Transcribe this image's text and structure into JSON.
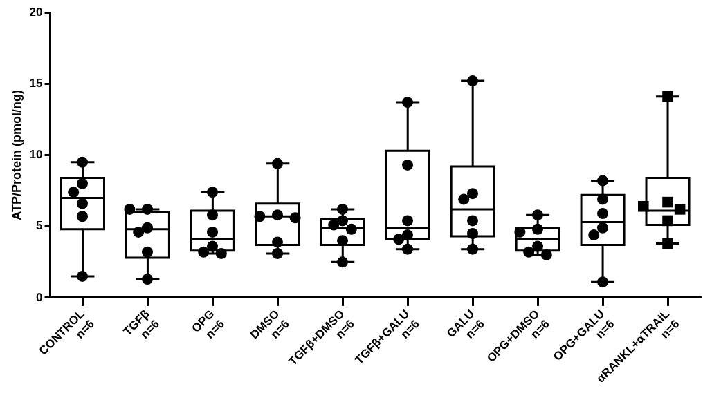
{
  "chart_data": {
    "type": "box",
    "ylabel": "ATP/Protein (pmol/ng)",
    "color": "#000000",
    "categories": [
      "CONTROL\nn=6",
      "TGFβ\nn=6",
      "OPG\nn=6",
      "DMSO\nn=6",
      "TGFβ+DMSO\nn=6",
      "TGFβ+GALU\nn=6",
      "GALU\nn=6",
      "OPG+DMSO\nn=6",
      "OPG+GALU\nn=6",
      "αRANKL+αTRAIL\nn=6"
    ],
    "ylim": [
      0,
      20
    ],
    "yticks": [
      0,
      5,
      10,
      15,
      20
    ],
    "boxes": [
      {
        "low": 1.5,
        "q1": 4.8,
        "median": 7.0,
        "q3": 8.4,
        "high": 9.5
      },
      {
        "low": 1.3,
        "q1": 2.8,
        "median": 4.8,
        "q3": 6.0,
        "high": 6.2
      },
      {
        "low": 3.1,
        "q1": 3.3,
        "median": 4.1,
        "q3": 6.1,
        "high": 7.4
      },
      {
        "low": 3.1,
        "q1": 3.7,
        "median": 5.7,
        "q3": 6.6,
        "high": 9.4
      },
      {
        "low": 2.5,
        "q1": 3.7,
        "median": 4.9,
        "q3": 5.5,
        "high": 6.2
      },
      {
        "low": 3.4,
        "q1": 4.1,
        "median": 4.9,
        "q3": 10.3,
        "high": 13.7
      },
      {
        "low": 3.4,
        "q1": 4.3,
        "median": 6.2,
        "q3": 9.2,
        "high": 15.2
      },
      {
        "low": 3.0,
        "q1": 3.3,
        "median": 4.1,
        "q3": 4.9,
        "high": 5.8
      },
      {
        "low": 1.1,
        "q1": 3.7,
        "median": 5.3,
        "q3": 7.2,
        "high": 8.2
      },
      {
        "low": 3.8,
        "q1": 5.1,
        "median": 6.1,
        "q3": 8.4,
        "high": 14.1
      }
    ],
    "series": [
      {
        "type": "scatter",
        "marker": "circle",
        "color": "#000000",
        "x": [
          "CONTROL\nn=6",
          "CONTROL\nn=6",
          "CONTROL\nn=6",
          "CONTROL\nn=6",
          "CONTROL\nn=6",
          "CONTROL\nn=6",
          "TGFβ\nn=6",
          "TGFβ\nn=6",
          "TGFβ\nn=6",
          "TGFβ\nn=6",
          "TGFβ\nn=6",
          "TGFβ\nn=6",
          "OPG\nn=6",
          "OPG\nn=6",
          "OPG\nn=6",
          "OPG\nn=6",
          "OPG\nn=6",
          "OPG\nn=6",
          "DMSO\nn=6",
          "DMSO\nn=6",
          "DMSO\nn=6",
          "DMSO\nn=6",
          "DMSO\nn=6",
          "DMSO\nn=6",
          "TGFβ+DMSO\nn=6",
          "TGFβ+DMSO\nn=6",
          "TGFβ+DMSO\nn=6",
          "TGFβ+DMSO\nn=6",
          "TGFβ+DMSO\nn=6",
          "TGFβ+DMSO\nn=6",
          "TGFβ+GALU\nn=6",
          "TGFβ+GALU\nn=6",
          "TGFβ+GALU\nn=6",
          "TGFβ+GALU\nn=6",
          "TGFβ+GALU\nn=6",
          "TGFβ+GALU\nn=6",
          "GALU\nn=6",
          "GALU\nn=6",
          "GALU\nn=6",
          "GALU\nn=6",
          "GALU\nn=6",
          "GALU\nn=6",
          "OPG+DMSO\nn=6",
          "OPG+DMSO\nn=6",
          "OPG+DMSO\nn=6",
          "OPG+DMSO\nn=6",
          "OPG+DMSO\nn=6",
          "OPG+DMSO\nn=6",
          "OPG+GALU\nn=6",
          "OPG+GALU\nn=6",
          "OPG+GALU\nn=6",
          "OPG+GALU\nn=6",
          "OPG+GALU\nn=6",
          "OPG+GALU\nn=6"
        ],
        "values": [
          9.5,
          8.0,
          7.4,
          6.6,
          5.7,
          1.5,
          6.2,
          6.2,
          4.9,
          4.6,
          3.2,
          1.3,
          7.4,
          5.8,
          4.6,
          3.6,
          3.2,
          3.1,
          9.4,
          5.8,
          5.7,
          5.6,
          3.9,
          3.1,
          6.2,
          5.4,
          5.1,
          4.8,
          4.0,
          2.5,
          13.7,
          9.3,
          5.4,
          4.4,
          4.1,
          3.4,
          15.2,
          7.3,
          6.9,
          5.4,
          4.5,
          3.4,
          5.8,
          4.8,
          4.6,
          3.6,
          3.2,
          3.0,
          8.2,
          6.9,
          5.9,
          4.9,
          4.4,
          1.1
        ]
      },
      {
        "type": "scatter",
        "marker": "square",
        "color": "#000000",
        "x": [
          "αRANKL+αTRAIL\nn=6",
          "αRANKL+αTRAIL\nn=6",
          "αRANKL+αTRAIL\nn=6",
          "αRANKL+αTRAIL\nn=6",
          "αRANKL+αTRAIL\nn=6",
          "αRANKL+αTRAIL\nn=6"
        ],
        "values": [
          14.1,
          6.7,
          6.4,
          6.2,
          5.4,
          3.8
        ]
      }
    ]
  }
}
